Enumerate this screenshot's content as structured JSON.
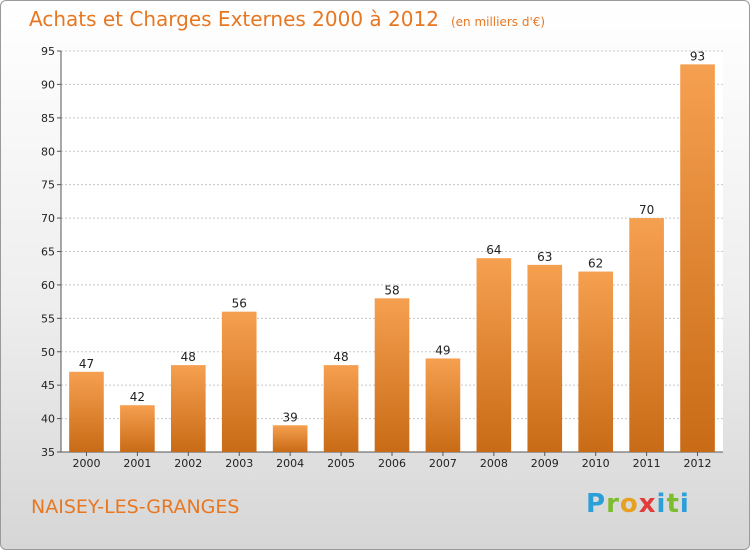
{
  "chart_data": {
    "type": "bar",
    "title": "Achats et Charges Externes 2000 à 2012",
    "subtitle": "(en milliers d'€)",
    "categories": [
      "2000",
      "2001",
      "2002",
      "2003",
      "2004",
      "2005",
      "2006",
      "2007",
      "2008",
      "2009",
      "2010",
      "2011",
      "2012"
    ],
    "values": [
      47,
      42,
      48,
      56,
      39,
      48,
      58,
      49,
      64,
      63,
      62,
      70,
      93
    ],
    "ylim": [
      35,
      95
    ],
    "yticks": [
      35,
      40,
      45,
      50,
      55,
      60,
      65,
      70,
      75,
      80,
      85,
      90,
      95
    ],
    "grid": true,
    "bar_color_top": "#f5a050",
    "bar_color_bottom": "#c96b16"
  },
  "commune": "NAISEY-LES-GRANGES",
  "logo": {
    "letters": [
      "P",
      "r",
      "o",
      "x",
      "i",
      "t",
      "i"
    ]
  },
  "colors": {
    "accent": "#e87722"
  }
}
